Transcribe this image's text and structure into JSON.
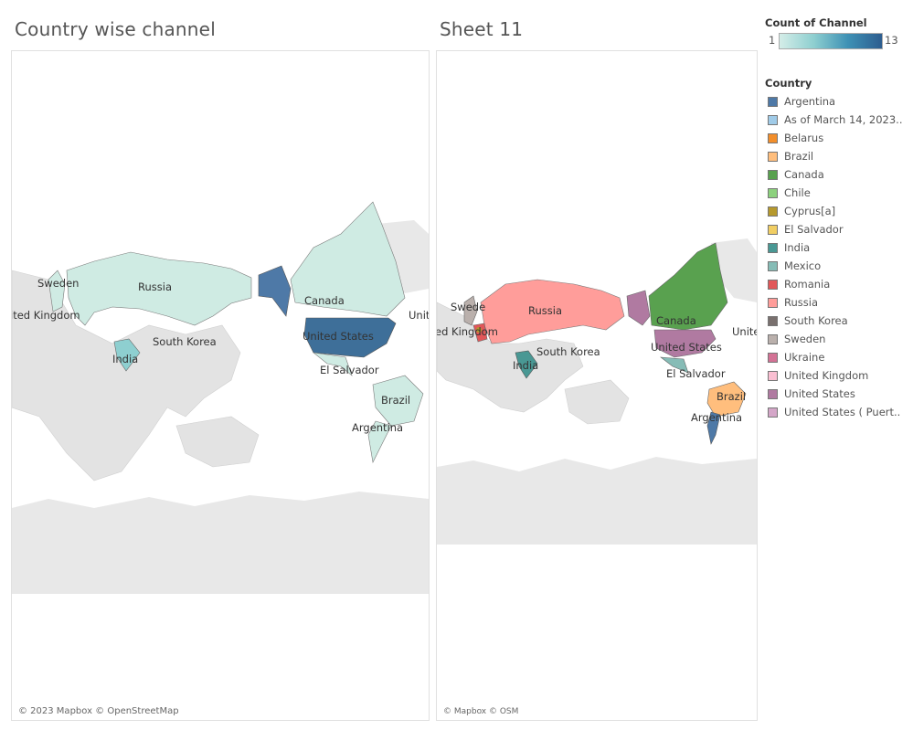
{
  "sheets": {
    "left_title": "Country wise channel",
    "right_title": "Sheet 11"
  },
  "left_map": {
    "labels": {
      "russia": "Russia",
      "canada": "Canada",
      "sweden": "Sweden",
      "uk": "ited Kingdom",
      "south_korea": "South Korea",
      "united_states": "United States",
      "india": "India",
      "el_salvador": "El Salvador",
      "brazil": "Brazil",
      "argentina": "Argentina",
      "edge": "Unit"
    },
    "attribution": "© 2023 Mapbox © OpenStreetMap"
  },
  "right_map": {
    "labels": {
      "russia": "Russia",
      "canada": "Canada",
      "sweden": "Swede",
      "uk": "ed Kingdom",
      "south_korea": "South Korea",
      "united_states": "United States",
      "india": "India",
      "el_salvador": "El Salvador",
      "brazil": "Brazil",
      "argentina": "Argentina",
      "edge": "Unite"
    },
    "attribution": "© Mapbox © OSM"
  },
  "color_legend": {
    "title": "Count of Channel",
    "min": "1",
    "max": "13",
    "colors": {
      "low": "#d4ede8",
      "mid": "#3e91b5",
      "high": "#2d5d8f"
    }
  },
  "country_legend": {
    "title": "Country",
    "items": [
      {
        "label": "Argentina",
        "color": "#4e79a7"
      },
      {
        "label": "As of March 14, 2023..",
        "color": "#a0cbe8"
      },
      {
        "label": "Belarus",
        "color": "#f28e2b"
      },
      {
        "label": "Brazil",
        "color": "#ffbe7d"
      },
      {
        "label": "Canada",
        "color": "#59a14f"
      },
      {
        "label": "Chile",
        "color": "#8cd17d"
      },
      {
        "label": "Cyprus[a]",
        "color": "#b6992d"
      },
      {
        "label": "El Salvador",
        "color": "#f1ce63"
      },
      {
        "label": "India",
        "color": "#499894"
      },
      {
        "label": "Mexico",
        "color": "#86bcb6"
      },
      {
        "label": "Romania",
        "color": "#e15759"
      },
      {
        "label": "Russia",
        "color": "#ff9d9a"
      },
      {
        "label": "South Korea",
        "color": "#79706e"
      },
      {
        "label": "Sweden",
        "color": "#bab0ac"
      },
      {
        "label": "Ukraine",
        "color": "#d37295"
      },
      {
        "label": "United Kingdom",
        "color": "#fabfd2"
      },
      {
        "label": "United States",
        "color": "#b07aa1"
      },
      {
        "label": "United States ( Puert..",
        "color": "#d4a6c8"
      }
    ]
  }
}
